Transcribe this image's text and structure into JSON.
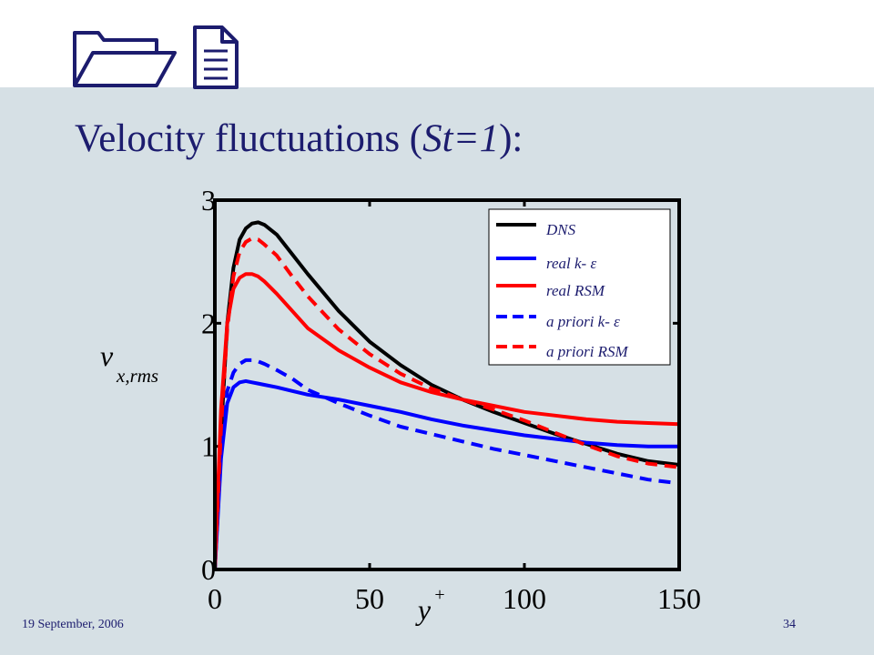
{
  "slide": {
    "title_prefix": "Velocity fluctuations (",
    "title_italic": "St=1",
    "title_suffix": "):",
    "footer_date": "19 September, 2006",
    "page_number": "34",
    "background_color": "#d6e0e5",
    "title_color": "#1c1c6e",
    "logo_icons": [
      "folder-icon",
      "document-icon"
    ]
  },
  "chart_data": {
    "type": "line",
    "xlabel": "y",
    "xlabel_superscript": "+",
    "ylabel": "v",
    "ylabel_subscript": "x,rms",
    "xlim": [
      0,
      150
    ],
    "ylim": [
      0,
      3
    ],
    "xticks": [
      "0",
      "50",
      "100",
      "150"
    ],
    "yticks": [
      "0",
      "1",
      "2",
      "3"
    ],
    "grid": false,
    "legend_position": "top-right",
    "series": [
      {
        "name": "DNS",
        "color": "#000000",
        "dash": "solid",
        "x": [
          0,
          2,
          4,
          6,
          8,
          10,
          12,
          14,
          16,
          20,
          25,
          30,
          40,
          50,
          60,
          70,
          80,
          90,
          100,
          110,
          120,
          130,
          140,
          150
        ],
        "y": [
          0,
          1.1,
          2.0,
          2.45,
          2.68,
          2.77,
          2.81,
          2.82,
          2.8,
          2.72,
          2.56,
          2.4,
          2.1,
          1.85,
          1.66,
          1.5,
          1.38,
          1.28,
          1.19,
          1.1,
          1.02,
          0.94,
          0.88,
          0.85
        ]
      },
      {
        "name": "real k- ε",
        "color": "#0000ff",
        "dash": "solid",
        "x": [
          0,
          2,
          4,
          6,
          8,
          10,
          12,
          14,
          16,
          20,
          25,
          30,
          40,
          50,
          60,
          70,
          80,
          90,
          100,
          110,
          120,
          130,
          140,
          150
        ],
        "y": [
          0,
          0.9,
          1.35,
          1.48,
          1.52,
          1.53,
          1.52,
          1.51,
          1.5,
          1.48,
          1.45,
          1.42,
          1.38,
          1.33,
          1.28,
          1.22,
          1.17,
          1.13,
          1.09,
          1.06,
          1.03,
          1.01,
          1.0,
          1.0
        ]
      },
      {
        "name": "real RSM",
        "color": "#ff0000",
        "dash": "solid",
        "x": [
          0,
          2,
          4,
          6,
          8,
          10,
          12,
          14,
          16,
          20,
          25,
          30,
          40,
          50,
          60,
          70,
          80,
          90,
          100,
          110,
          120,
          130,
          140,
          150
        ],
        "y": [
          0,
          1.3,
          2.0,
          2.28,
          2.37,
          2.4,
          2.4,
          2.38,
          2.34,
          2.24,
          2.1,
          1.96,
          1.78,
          1.64,
          1.52,
          1.44,
          1.38,
          1.33,
          1.28,
          1.25,
          1.22,
          1.2,
          1.19,
          1.18
        ]
      },
      {
        "name": "a priori k- ε",
        "color": "#0000ff",
        "dash": "dashed",
        "x": [
          0,
          2,
          4,
          6,
          8,
          10,
          12,
          14,
          16,
          20,
          25,
          30,
          40,
          50,
          60,
          70,
          80,
          90,
          100,
          110,
          120,
          130,
          140,
          150
        ],
        "y": [
          0,
          0.95,
          1.45,
          1.6,
          1.67,
          1.7,
          1.7,
          1.69,
          1.67,
          1.62,
          1.55,
          1.46,
          1.35,
          1.25,
          1.16,
          1.1,
          1.04,
          0.98,
          0.93,
          0.88,
          0.83,
          0.78,
          0.73,
          0.7
        ]
      },
      {
        "name": "a priori RSM",
        "color": "#ff0000",
        "dash": "dashed",
        "x": [
          0,
          2,
          4,
          6,
          8,
          10,
          12,
          14,
          16,
          20,
          25,
          30,
          40,
          50,
          60,
          70,
          80,
          90,
          100,
          110,
          120,
          130,
          140,
          150
        ],
        "y": [
          0,
          1.15,
          1.95,
          2.38,
          2.58,
          2.66,
          2.69,
          2.68,
          2.64,
          2.55,
          2.38,
          2.22,
          1.95,
          1.75,
          1.59,
          1.47,
          1.38,
          1.3,
          1.21,
          1.11,
          1.01,
          0.92,
          0.86,
          0.83
        ]
      }
    ]
  }
}
